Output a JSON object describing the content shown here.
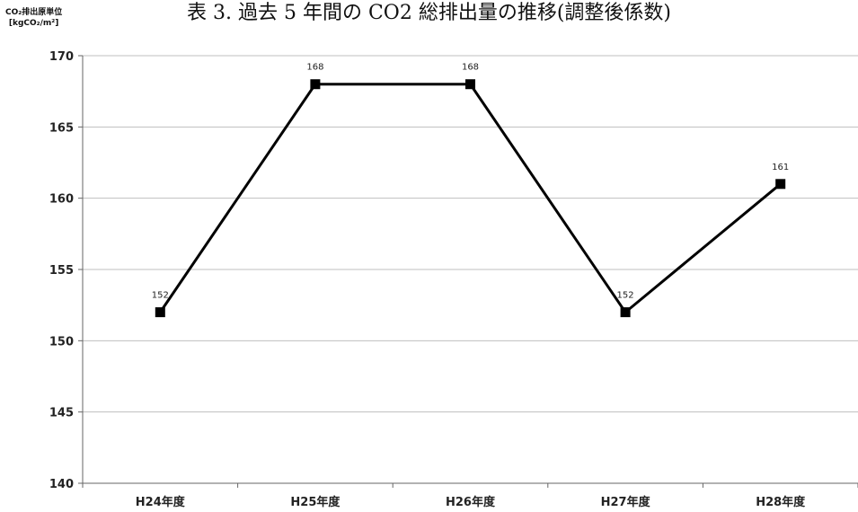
{
  "chart_data": {
    "type": "line",
    "title": "表 3. 過去 5 年間の CO2 総排出量の推移(調整後係数)",
    "ylabel_line1": "CO₂排出原単位",
    "ylabel_line2": "[kgCO₂/m²]",
    "xlabel": "",
    "categories": [
      "H24年度",
      "H25年度",
      "H26年度",
      "H27年度",
      "H28年度"
    ],
    "series": [
      {
        "values": [
          152,
          168,
          168,
          152,
          161
        ]
      }
    ],
    "data_labels": [
      "152",
      "168",
      "168",
      "152",
      "161"
    ],
    "ylim": [
      140,
      170
    ],
    "yticks": [
      140,
      145,
      150,
      155,
      160,
      165,
      170
    ],
    "grid": true,
    "line_color": "#000000",
    "grid_color": "#bfbfbf"
  }
}
